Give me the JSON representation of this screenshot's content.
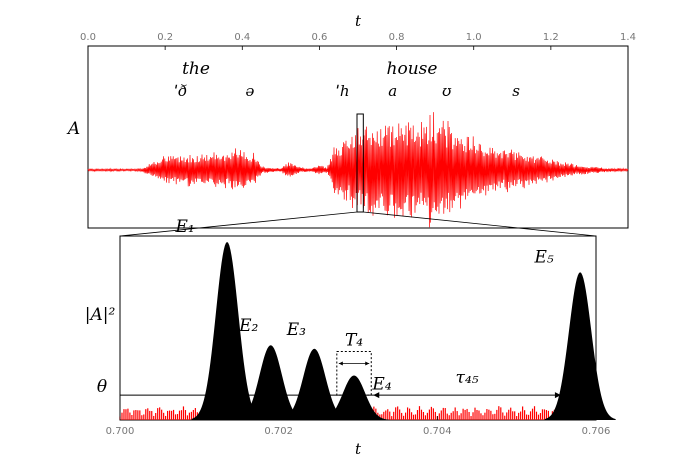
{
  "chart_data": [
    {
      "type": "line",
      "panel": "waveform",
      "xlabel": "t",
      "ylabel": "A",
      "xlim": [
        0.0,
        1.4
      ],
      "x_ticks": [
        "0.0",
        "0.2",
        "0.4",
        "0.6",
        "0.8",
        "1.0",
        "1.2",
        "1.4"
      ],
      "series_color": "#ff0000",
      "words": [
        {
          "text": "the",
          "t": 0.28
        },
        {
          "text": "house",
          "t": 0.84
        }
      ],
      "phonemes": [
        {
          "text": "ˈð",
          "t": 0.24
        },
        {
          "text": "ə",
          "t": 0.42
        },
        {
          "text": "ˈh",
          "t": 0.66
        },
        {
          "text": "a",
          "t": 0.79
        },
        {
          "text": "ʊ",
          "t": 0.93
        },
        {
          "text": "s",
          "t": 1.11
        }
      ],
      "envelope": {
        "t": [
          0.0,
          0.14,
          0.16,
          0.2,
          0.26,
          0.32,
          0.38,
          0.43,
          0.45,
          0.5,
          0.52,
          0.55,
          0.58,
          0.6,
          0.62,
          0.64,
          0.66,
          0.68,
          0.7,
          0.74,
          0.78,
          0.82,
          0.86,
          0.9,
          0.93,
          0.96,
          1.0,
          1.04,
          1.08,
          1.14,
          1.2,
          1.26,
          1.34,
          1.4
        ],
        "amplitude": [
          0.02,
          0.02,
          0.12,
          0.25,
          0.28,
          0.3,
          0.37,
          0.3,
          0.06,
          0.03,
          0.15,
          0.05,
          0.03,
          0.1,
          0.04,
          0.45,
          0.55,
          0.6,
          0.75,
          0.82,
          0.88,
          0.85,
          0.9,
          1.0,
          0.92,
          0.7,
          0.55,
          0.45,
          0.38,
          0.3,
          0.2,
          0.1,
          0.04,
          0.02
        ]
      },
      "zoom_window": [
        0.7,
        0.706
      ]
    },
    {
      "type": "area",
      "panel": "energy",
      "xlabel": "t",
      "ylabel": "|A|²",
      "xlim": [
        0.7,
        0.706
      ],
      "x_ticks": [
        "0.700",
        "0.702",
        "0.704",
        "0.706"
      ],
      "threshold_label": "θ",
      "threshold": 0.14,
      "peaks": [
        {
          "label": "E₁",
          "t": 0.70135,
          "height": 1.0
        },
        {
          "label": "E₂",
          "t": 0.7019,
          "height": 0.42
        },
        {
          "label": "E₃",
          "t": 0.70245,
          "height": 0.4
        },
        {
          "label": "E₄",
          "t": 0.70295,
          "height": 0.25
        },
        {
          "label": "E₅",
          "t": 0.7058,
          "height": 0.83
        }
      ],
      "annotations": [
        {
          "text": "T₄",
          "kind": "peak-width",
          "of": "E₄"
        },
        {
          "text": "τ₄₅",
          "kind": "interval",
          "from": "E₄",
          "to": "E₅"
        }
      ],
      "above_threshold_color": "#000000",
      "below_threshold_color": "#ff0000"
    }
  ]
}
